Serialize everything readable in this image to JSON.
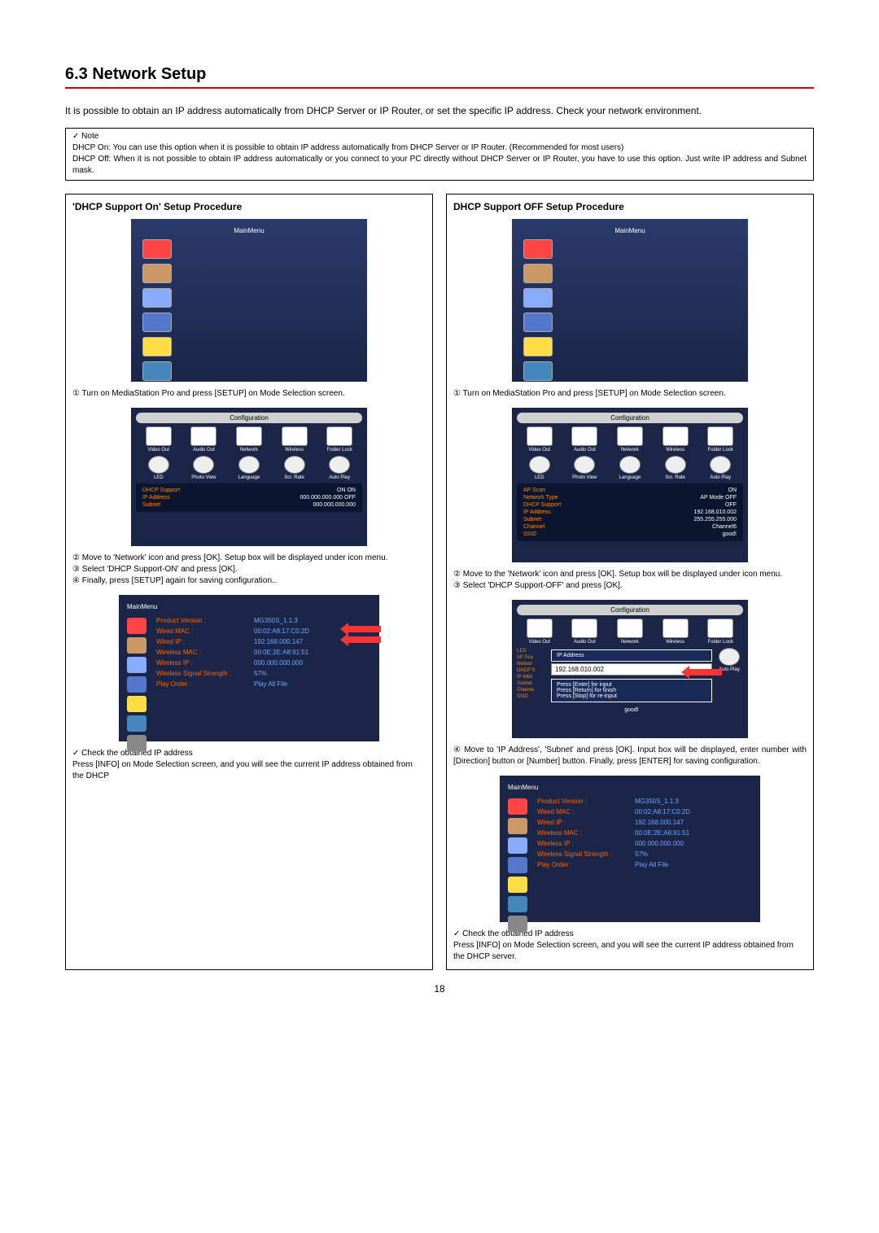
{
  "section": {
    "title": "6.3 Network Setup",
    "underline_color": "#cc0000"
  },
  "intro": "It is possible to obtain an IP address automatically from DHCP Server or IP Router, or set the specific IP address. Check your network environment.",
  "note": {
    "title": "✓ Note",
    "line1": "DHCP On: You can use this option when it is possible to obtain IP address automatically from DHCP Server or IP Router. (Recommended for most users)",
    "line2": "DHCP Off: When it is not possible to obtain IP address automatically or you connect to your PC directly without DHCP Server or IP Router, you have to use this option. Just write IP address and Subnet mask."
  },
  "left": {
    "title": "'DHCP Support On' Setup Procedure",
    "main_menu_title": "MainMenu",
    "main_icon_colors": [
      "#ff4444",
      "#cc9966",
      "#88aaff",
      "#5577cc",
      "#ffdd44",
      "#4488bb"
    ],
    "step1": "① Turn on MediaStation Pro and press [SETUP] on Mode Selection screen.",
    "config": {
      "title": "Configuration",
      "row1_labels": [
        "Video Out",
        "Audio Out",
        "Network",
        "Wireless",
        "Folder Lock"
      ],
      "row2_labels": [
        "LED",
        "Photo View",
        "Language",
        "Scr. Rate",
        "Auto Play"
      ],
      "settings": [
        {
          "k": "DHCP Support",
          "v": "ON  ON"
        },
        {
          "k": "IP Address",
          "v": "000.000.000.000  OFF"
        },
        {
          "k": "Subnet",
          "v": "000.000.000.000"
        }
      ]
    },
    "steps234": "② Move to 'Network' icon and press [OK]. Setup box will be displayed under icon menu.\n③ Select 'DHCP Support-ON' and press [OK].\n④ Finally, press [SETUP] again for saving configuration..",
    "info": {
      "title": "MainMenu",
      "side_colors": [
        "#ff4444",
        "#cc9966",
        "#88aaff",
        "#5577cc",
        "#ffdd44",
        "#4488bb",
        "#888"
      ],
      "rows": [
        {
          "lbl": "Product Version :",
          "val": "MG350S_1.1.3"
        },
        {
          "lbl": "Wired MAC :",
          "val": "00:02:A8:17:C0:2D"
        },
        {
          "lbl": "Wired IP :",
          "val": "192.168.000.147"
        },
        {
          "lbl": "Wireless MAC :",
          "val": "00:0E:2E:A8:91:51"
        },
        {
          "lbl": "Wireless IP :",
          "val": "000.000.000.000"
        },
        {
          "lbl": "Wireless Signal Strength :",
          "val": "57%"
        },
        {
          "lbl": "Play Order :",
          "val": "Play All File"
        }
      ],
      "arrow_rows": [
        1,
        2
      ]
    },
    "final": "✓ Check the obtained IP address\nPress [INFO] on Mode Selection screen, and you will see the current IP address obtained from the DHCP"
  },
  "right": {
    "title": "DHCP Support OFF Setup Procedure",
    "main_menu_title": "MainMenu",
    "main_icon_colors": [
      "#ff4444",
      "#cc9966",
      "#88aaff",
      "#5577cc",
      "#ffdd44",
      "#4488bb"
    ],
    "step1": "① Turn on MediaStation Pro and press [SETUP] on Mode Selection screen.",
    "config": {
      "title": "Configuration",
      "row1_labels": [
        "Video Out",
        "Audio Out",
        "Network",
        "Wireless",
        "Folder Lock"
      ],
      "row2_labels": [
        "LED",
        "Photo View",
        "Language",
        "Scr. Rate",
        "Auto Play"
      ],
      "settings": [
        {
          "k": "AP Scan",
          "v": "ON"
        },
        {
          "k": "Network Type",
          "v": "AP Mode      OFF"
        },
        {
          "k": "DHCP Support",
          "v": "OFF"
        },
        {
          "k": "IP Address",
          "v": "192.168.010.002"
        },
        {
          "k": "Subnet",
          "v": "255.255.255.000"
        },
        {
          "k": "Channel",
          "v": "Channel6"
        },
        {
          "k": "SSID",
          "v": "good!"
        }
      ]
    },
    "steps23": "② Move to the 'Network' icon and press [OK]. Setup box will be displayed under icon menu.\n③ Select 'DHCP Support-OFF' and press [OK].",
    "ipbox": {
      "title": "Configuration",
      "row1_labels": [
        "Video Out",
        "Audio Out",
        "Network",
        "Wireless",
        "Folder Lock"
      ],
      "side_labels": [
        "LED",
        "AP Sca",
        "Networ",
        "DHCP S",
        "IP Addr",
        "Subnet",
        "Channe",
        "SSID"
      ],
      "ip_label": "IP Address",
      "ip_value": "192.168.010.002",
      "hint1": "Press [Enter] for input",
      "hint2": "Press [Return] for finish",
      "hint3": "Press [Stop] for re-input",
      "ssid": "good!",
      "autoplay": "Auto Play"
    },
    "step4": "④ Move to 'IP Address', 'Subnet' and press [OK]. Input box will be displayed, enter number with [Direction] button or [Number] button. Finally, press [ENTER] for saving configuration.",
    "info": {
      "title": "MainMenu",
      "side_colors": [
        "#ff4444",
        "#cc9966",
        "#88aaff",
        "#5577cc",
        "#ffdd44",
        "#4488bb",
        "#888"
      ],
      "rows": [
        {
          "lbl": "Product Version :",
          "val": "MG350S_1.1.3"
        },
        {
          "lbl": "Wired MAC :",
          "val": "00:02:A8:17:C0:2D"
        },
        {
          "lbl": "Wired IP :",
          "val": "192.168.000.147"
        },
        {
          "lbl": "Wireless MAC :",
          "val": "00:0E:2E:A8:91:51"
        },
        {
          "lbl": "Wireless IP :",
          "val": "000.000.000.000"
        },
        {
          "lbl": "Wireless Signal Strength :",
          "val": "57%"
        },
        {
          "lbl": "Play Order :",
          "val": "Play All File"
        }
      ]
    },
    "final": "✓ Check the obtained IP address\nPress [INFO] on Mode Selection screen, and you will see the current IP address obtained from the DHCP server."
  },
  "page_number": "18"
}
